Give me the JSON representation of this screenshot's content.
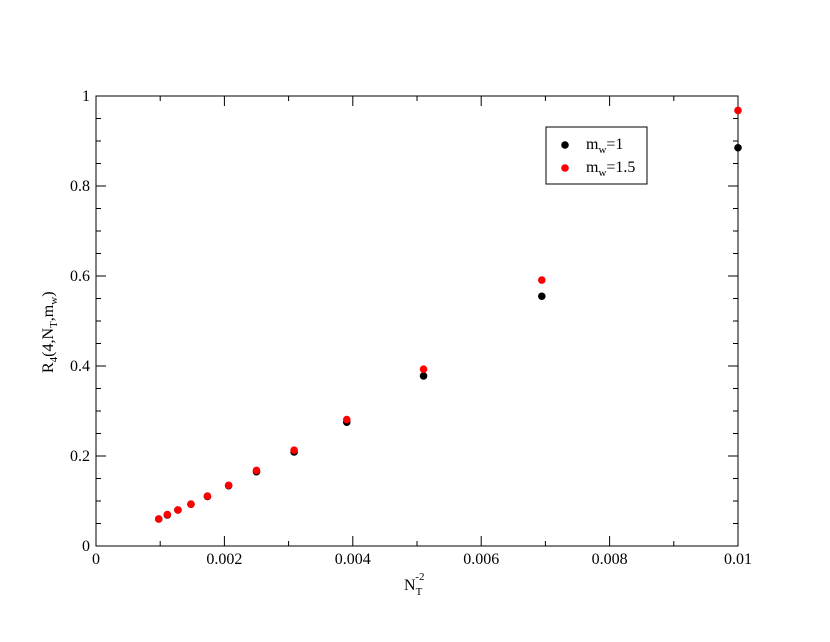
{
  "chart_data": {
    "type": "scatter",
    "title": "",
    "xlabel": {
      "base": "N",
      "sub": "T",
      "sup": "-2"
    },
    "ylabel": {
      "p1": "R",
      "s1": "4",
      "p2": "(4,N",
      "s2": "T",
      "p3": ",m",
      "s3": "w",
      "p4": ")"
    },
    "xlim": [
      0,
      0.01
    ],
    "ylim": [
      0,
      1
    ],
    "x_ticks": [
      0,
      0.002,
      0.004,
      0.006,
      0.008,
      0.01
    ],
    "x_tick_labels": [
      "0",
      "0.002",
      "0.004",
      "0.006",
      "0.008",
      "0.01"
    ],
    "y_ticks": [
      0,
      0.2,
      0.4,
      0.6,
      0.8,
      1
    ],
    "y_tick_labels": [
      "0",
      "0.2",
      "0.4",
      "0.6",
      "0.8",
      "1"
    ],
    "grid": false,
    "legend_position": "top-right",
    "series": [
      {
        "legend": {
          "base": "m",
          "sub": "w",
          "rest": "=1"
        },
        "color": "#000000",
        "x": [
          0.000977,
          0.001111,
          0.001276,
          0.001479,
          0.001736,
          0.002066,
          0.0025,
          0.003086,
          0.003906,
          0.005102,
          0.006944,
          0.01
        ],
        "y": [
          0.06,
          0.069,
          0.08,
          0.093,
          0.11,
          0.134,
          0.165,
          0.209,
          0.275,
          0.378,
          0.555,
          0.885
        ]
      },
      {
        "legend": {
          "base": "m",
          "sub": "w",
          "rest": "=1.5"
        },
        "color": "#ff0000",
        "x": [
          0.000977,
          0.001111,
          0.001276,
          0.001479,
          0.001736,
          0.002066,
          0.0025,
          0.003086,
          0.003906,
          0.005102,
          0.006944,
          0.01
        ],
        "y": [
          0.06,
          0.07,
          0.08,
          0.093,
          0.111,
          0.135,
          0.168,
          0.213,
          0.281,
          0.393,
          0.591,
          0.968
        ]
      }
    ]
  }
}
